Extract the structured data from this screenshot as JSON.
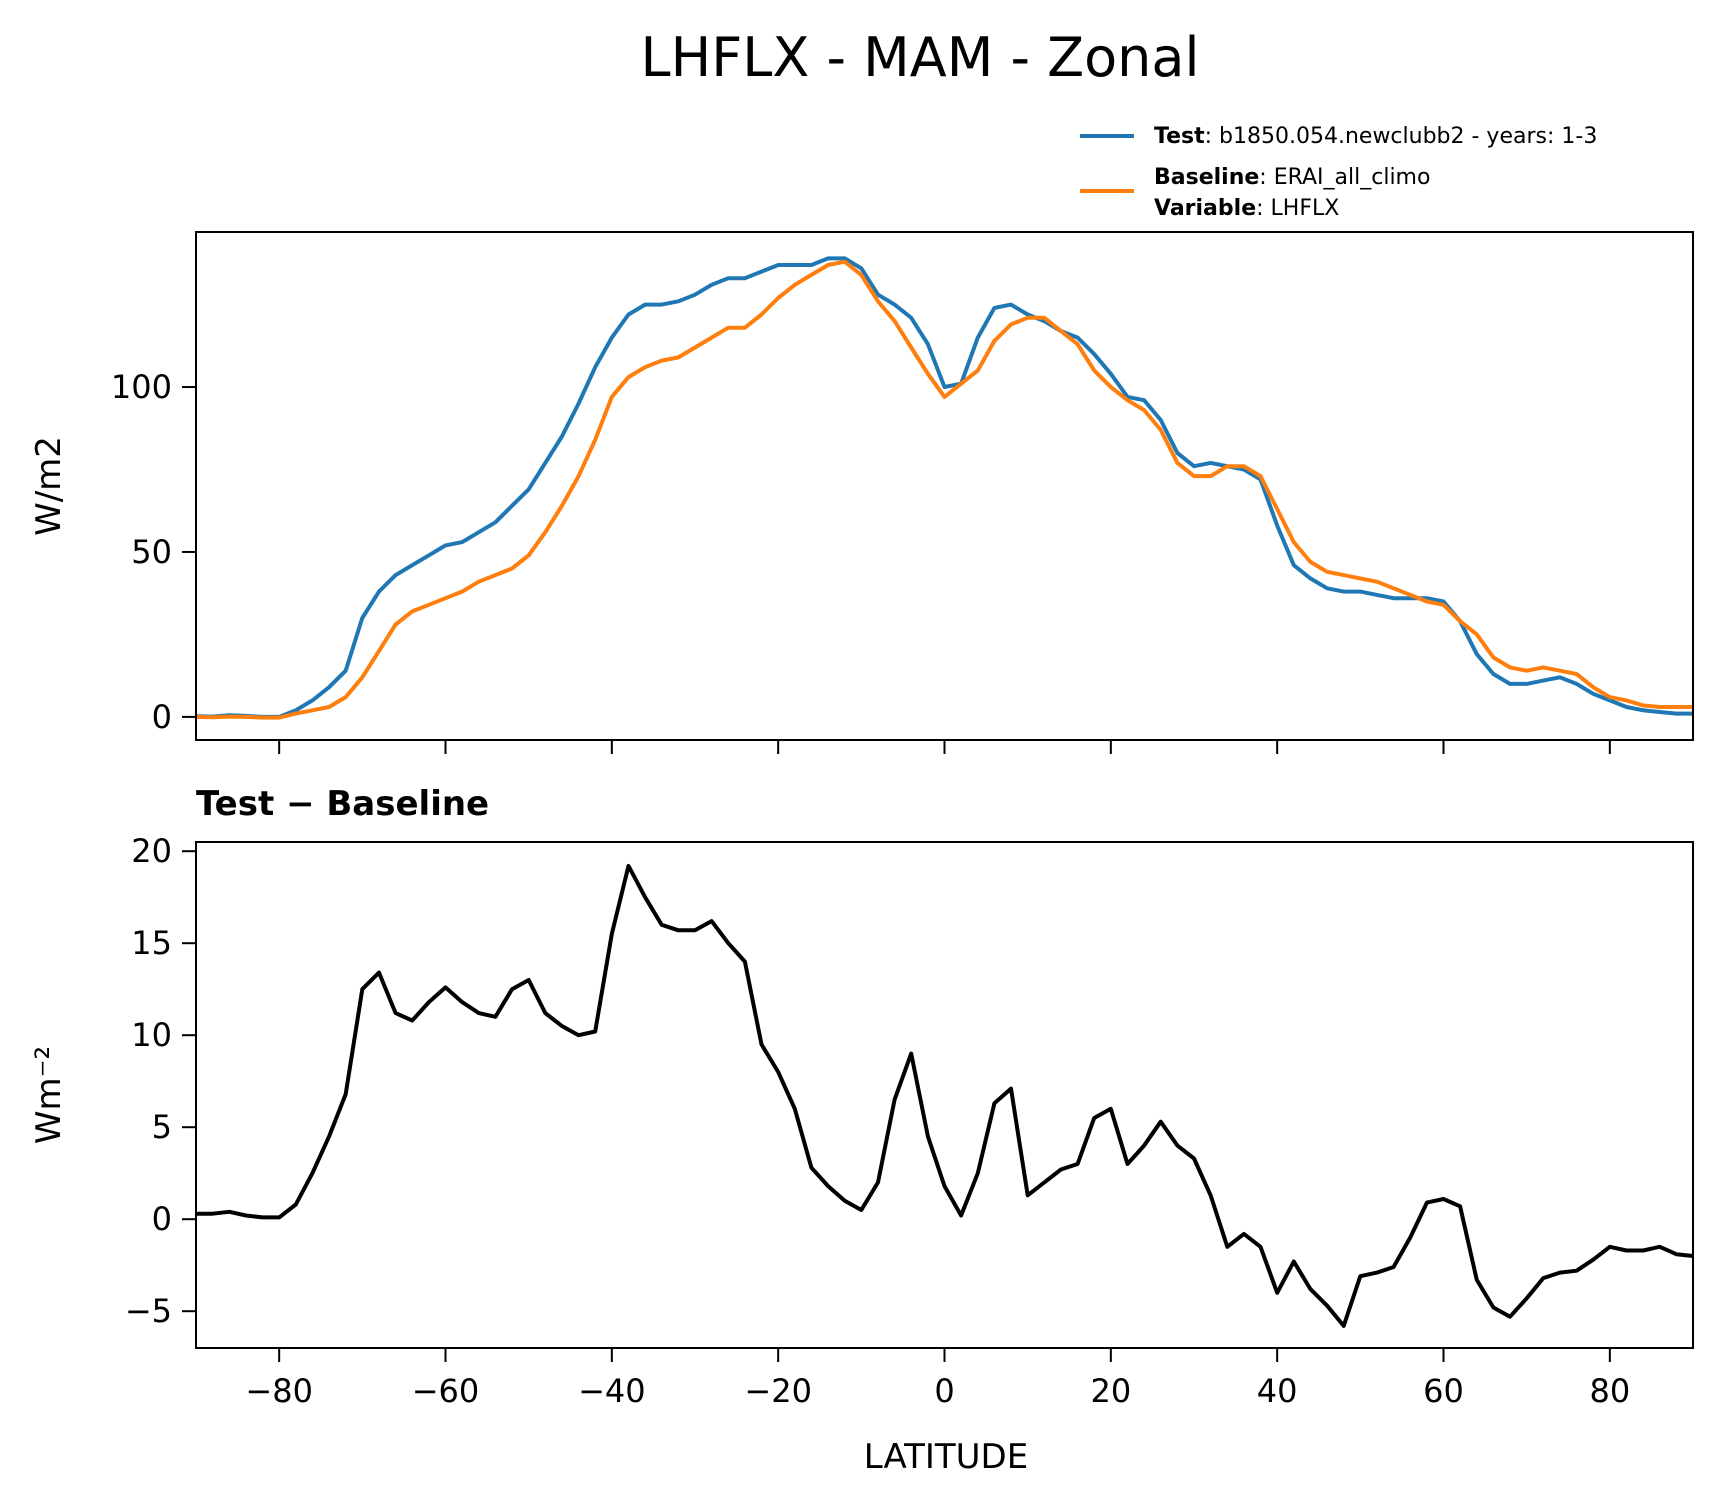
{
  "figure": {
    "title": "LHFLX - MAM - Zonal",
    "xlabel": "LATITUDE",
    "diff_title": "Test − Baseline"
  },
  "legend": {
    "test_key": "Test",
    "test_value": ": b1850.054.newclubb2 - years: 1-3",
    "baseline_key": "Baseline",
    "baseline_value": ": ERAI_all_climo",
    "variable_key": "Variable",
    "variable_value": ": LHFLX"
  },
  "colors": {
    "test": "#1f77b4",
    "baseline": "#ff7f0e",
    "diff": "#000000"
  },
  "chart_data": [
    {
      "type": "line",
      "ylabel": "W/m2",
      "xlim": [
        -90,
        90
      ],
      "ylim": [
        -7,
        147
      ],
      "xticks": [
        -80,
        -60,
        -40,
        -20,
        0,
        20,
        40,
        60,
        80
      ],
      "yticks": [
        0,
        50,
        100
      ],
      "ytick_labels": [
        "0",
        "50",
        "100"
      ],
      "series": [
        {
          "name": "Test",
          "x": [
            -90,
            -88,
            -86,
            -84,
            -82,
            -80,
            -78,
            -76,
            -74,
            -72,
            -70,
            -68,
            -66,
            -64,
            -62,
            -60,
            -58,
            -56,
            -54,
            -52,
            -50,
            -48,
            -46,
            -44,
            -42,
            -40,
            -38,
            -36,
            -34,
            -32,
            -30,
            -28,
            -26,
            -24,
            -22,
            -20,
            -18,
            -16,
            -14,
            -12,
            -10,
            -8,
            -6,
            -4,
            -2,
            0,
            2,
            4,
            6,
            8,
            10,
            12,
            14,
            16,
            18,
            20,
            22,
            24,
            26,
            28,
            30,
            32,
            34,
            36,
            38,
            40,
            42,
            44,
            46,
            48,
            50,
            52,
            54,
            56,
            58,
            60,
            62,
            64,
            66,
            68,
            70,
            72,
            74,
            76,
            78,
            80,
            82,
            84,
            86,
            88,
            90
          ],
          "y": [
            0.2,
            0.1,
            0.5,
            0.3,
            0,
            0,
            2,
            5,
            9,
            14,
            30,
            38,
            43,
            46,
            49,
            52,
            53,
            56,
            59,
            64,
            69,
            77,
            85,
            95,
            106,
            115,
            122,
            125,
            125,
            126,
            128,
            131,
            133,
            133,
            135,
            137,
            137,
            137,
            139,
            139,
            136,
            128,
            125,
            121,
            113,
            100,
            101,
            115,
            124,
            125,
            122,
            120,
            117,
            115,
            110,
            104,
            97,
            96,
            90,
            80,
            76,
            77,
            76,
            75,
            72,
            58,
            46,
            42,
            39,
            38,
            38,
            37,
            36,
            36,
            36,
            35,
            29,
            19,
            13,
            10,
            10,
            11,
            12,
            10,
            7,
            5,
            3,
            2,
            1.5,
            1,
            1
          ]
        },
        {
          "name": "Baseline",
          "x": [
            -90,
            -88,
            -86,
            -84,
            -82,
            -80,
            -78,
            -76,
            -74,
            -72,
            -70,
            -68,
            -66,
            -64,
            -62,
            -60,
            -58,
            -56,
            -54,
            -52,
            -50,
            -48,
            -46,
            -44,
            -42,
            -40,
            -38,
            -36,
            -34,
            -32,
            -30,
            -28,
            -26,
            -24,
            -22,
            -20,
            -18,
            -16,
            -14,
            -12,
            -10,
            -8,
            -6,
            -4,
            -2,
            0,
            2,
            4,
            6,
            8,
            10,
            12,
            14,
            16,
            18,
            20,
            22,
            24,
            26,
            28,
            30,
            32,
            34,
            36,
            38,
            40,
            42,
            44,
            46,
            48,
            50,
            52,
            54,
            56,
            58,
            60,
            62,
            64,
            66,
            68,
            70,
            72,
            74,
            76,
            78,
            80,
            82,
            84,
            86,
            88,
            90
          ],
          "y": [
            0,
            -0.1,
            0.1,
            0,
            -0.2,
            -0.2,
            1,
            2,
            3,
            6,
            12,
            20,
            28,
            32,
            34,
            36,
            38,
            41,
            43,
            45,
            49,
            56,
            64,
            73,
            84,
            97,
            103,
            106,
            108,
            109,
            112,
            115,
            118,
            118,
            122,
            127,
            131,
            134,
            137,
            138,
            134,
            126,
            120,
            112,
            104,
            97,
            101,
            105,
            114,
            119,
            121,
            121,
            117,
            113,
            105,
            100,
            96,
            93,
            87,
            77,
            73,
            73,
            76,
            76,
            73,
            63,
            53,
            47,
            44,
            43,
            42,
            41,
            39,
            37,
            35,
            34,
            29,
            25,
            18,
            15,
            14,
            15,
            14,
            13,
            9,
            6,
            5,
            3.5,
            3,
            3,
            3
          ]
        }
      ]
    },
    {
      "type": "line",
      "title": "Test − Baseline",
      "ylabel": "Wm⁻²",
      "xlabel": "LATITUDE",
      "xlim": [
        -90,
        90
      ],
      "ylim": [
        -7,
        20.5
      ],
      "xticks": [
        -80,
        -60,
        -40,
        -20,
        0,
        20,
        40,
        60,
        80
      ],
      "xtick_labels": [
        "−80",
        "−60",
        "−40",
        "−20",
        "0",
        "20",
        "40",
        "60",
        "80"
      ],
      "yticks": [
        -5,
        0,
        5,
        10,
        15,
        20
      ],
      "ytick_labels": [
        "−5",
        "0",
        "5",
        "10",
        "15",
        "20"
      ],
      "series": [
        {
          "name": "Test − Baseline",
          "x": [
            -90,
            -88,
            -86,
            -84,
            -82,
            -80,
            -78,
            -76,
            -74,
            -72,
            -70,
            -68,
            -66,
            -64,
            -62,
            -60,
            -58,
            -56,
            -54,
            -52,
            -50,
            -48,
            -46,
            -44,
            -42,
            -40,
            -38,
            -36,
            -34,
            -32,
            -30,
            -28,
            -26,
            -24,
            -22,
            -20,
            -18,
            -16,
            -14,
            -12,
            -10,
            -8,
            -6,
            -4,
            -2,
            0,
            2,
            4,
            6,
            8,
            10,
            12,
            14,
            16,
            18,
            20,
            22,
            24,
            26,
            28,
            30,
            32,
            34,
            36,
            38,
            40,
            42,
            44,
            46,
            48,
            50,
            52,
            54,
            56,
            58,
            60,
            62,
            64,
            66,
            68,
            70,
            72,
            74,
            76,
            78,
            80,
            82,
            84,
            86,
            88,
            90
          ],
          "y": [
            0.3,
            0.3,
            0.4,
            0.2,
            0.1,
            0.1,
            0.8,
            2.5,
            4.5,
            6.8,
            12.5,
            13.4,
            11.2,
            10.8,
            11.8,
            12.6,
            11.8,
            11.2,
            11.0,
            12.5,
            13.0,
            11.2,
            10.5,
            10.0,
            10.2,
            15.5,
            19.2,
            17.5,
            16.0,
            15.7,
            15.7,
            16.2,
            15.0,
            14.0,
            9.5,
            8.0,
            6.0,
            2.8,
            1.8,
            1.0,
            0.5,
            2.0,
            6.5,
            9.0,
            4.5,
            1.8,
            0.2,
            2.5,
            6.3,
            7.1,
            1.3,
            2.0,
            2.7,
            3.0,
            5.5,
            6.0,
            3.0,
            4.0,
            5.3,
            4.0,
            3.3,
            1.3,
            -1.5,
            -0.8,
            -1.5,
            -4.0,
            -2.3,
            -3.8,
            -4.7,
            -5.8,
            -3.1,
            -2.9,
            -2.6,
            -1.0,
            0.9,
            1.1,
            0.7,
            -3.3,
            -4.8,
            -5.3,
            -4.3,
            -3.2,
            -2.9,
            -2.8,
            -2.2,
            -1.5,
            -1.7,
            -1.7,
            -1.5,
            -1.9,
            -2.0
          ]
        }
      ]
    }
  ]
}
